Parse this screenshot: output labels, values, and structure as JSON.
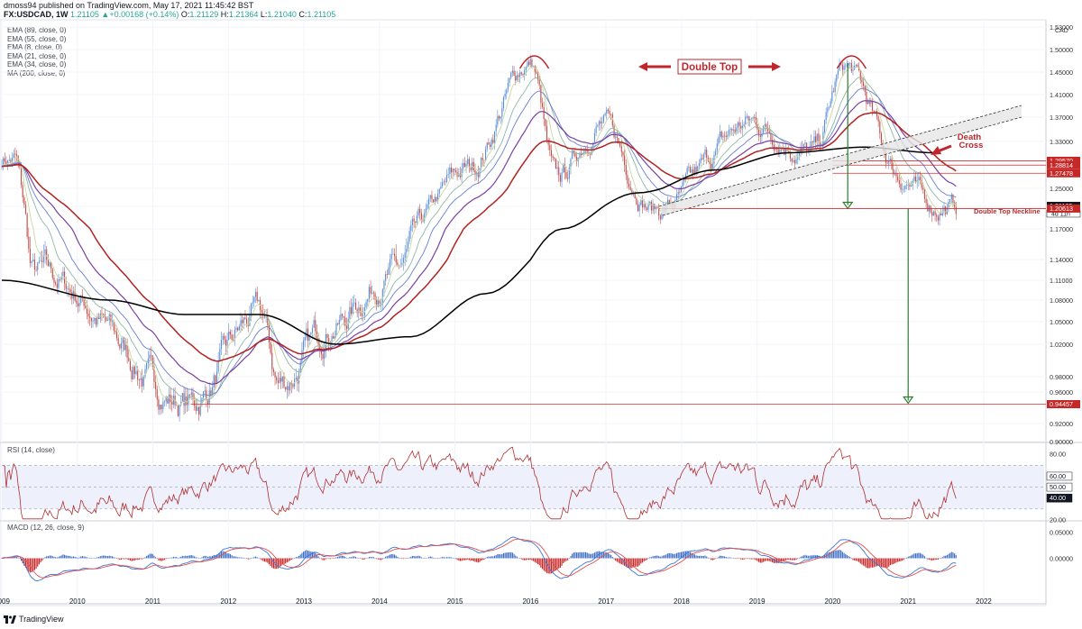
{
  "header": {
    "publish_line": "dmoss94 published on TradingView.com, May 17, 2021 11:45:42 BST",
    "symbol": "FX:USDCAD, 1W",
    "change_arrow": "▲",
    "change": "+0.00168 (+0.14%)",
    "ohlc": [
      {
        "label": "O:",
        "value": "1.21129"
      },
      {
        "label": "H:",
        "value": "1.21364"
      },
      {
        "label": "L:",
        "value": "1.21040"
      },
      {
        "label": "C:",
        "value": "1.21105"
      }
    ],
    "first_value": "1.21105"
  },
  "legend": [
    "EMA (89, close, 0)",
    "EMA (55, close, 0)",
    "EMA (8, close, 0)",
    "EMA (21, close, 0)",
    "EMA (34, close, 0)",
    "MA (200, close, 0)"
  ],
  "annotations": {
    "double_top": "Double Top",
    "death_cross_1": "Death",
    "death_cross_2": "Cross",
    "neckline": "Double Top Neckline"
  },
  "footer": {
    "brand": "TradingView"
  },
  "colors": {
    "up": "#26a69a",
    "down": "#ef5350",
    "candle_up": "#5b8fd6",
    "candle_down": "#c0504d",
    "ma200": "#000000",
    "ema89": "#b22222",
    "ema55": "#7b3fa0",
    "ema34": "#6a7fd0",
    "ema21": "#8fb8a6",
    "ema8": "#c9d8a0",
    "rsi": "#b03030",
    "macd": "#3c78d8",
    "signal": "#e05050",
    "annotation": "#c0272d",
    "target_arrow": "#2e7d32"
  },
  "chart_data": [
    {
      "type": "candlestick",
      "title": "FX:USDCAD, 1W",
      "ylabel": "CAD",
      "ylim": [
        0.9,
        1.53
      ],
      "x_ticks": [
        "2009",
        "2010",
        "2011",
        "2012",
        "2013",
        "2014",
        "2015",
        "2016",
        "2017",
        "2018",
        "2019",
        "2020",
        "2021",
        "2022"
      ],
      "y_ticks": [
        "1.53000",
        "1.50000",
        "1.45000",
        "1.41000",
        "1.37000",
        "1.33000",
        "1.29000",
        "1.25000",
        "1.21000",
        "1.17000",
        "1.14000",
        "1.11000",
        "1.08000",
        "1.05000",
        "1.02000",
        "0.98000",
        "0.96000",
        "0.92000",
        "0.90000"
      ],
      "price_markers": [
        {
          "label": "1.29570",
          "value": 1.2957
        },
        {
          "label": "1.28814",
          "value": 1.28814
        },
        {
          "label": "1.27478",
          "value": 1.27478
        },
        {
          "label": "1.21105",
          "value": 1.21105,
          "sub": "4d 11h"
        },
        {
          "label": "1.20613",
          "value": 1.20613
        },
        {
          "label": "0.94457",
          "value": 0.94457
        }
      ],
      "key_points": [
        {
          "x": "2009-03",
          "y": 1.3
        },
        {
          "x": "2009-06",
          "y": 1.12
        },
        {
          "x": "2011-07",
          "y": 0.945
        },
        {
          "x": "2012-06",
          "y": 1.06
        },
        {
          "x": "2012-09",
          "y": 0.97
        },
        {
          "x": "2013-06",
          "y": 1.05
        },
        {
          "x": "2014-03",
          "y": 1.12
        },
        {
          "x": "2015-03",
          "y": 1.28
        },
        {
          "x": "2016-01",
          "y": 1.47
        },
        {
          "x": "2016-05",
          "y": 1.26
        },
        {
          "x": "2016-12",
          "y": 1.36
        },
        {
          "x": "2017-09",
          "y": 1.206
        },
        {
          "x": "2018-12",
          "y": 1.36
        },
        {
          "x": "2019-10",
          "y": 1.31
        },
        {
          "x": "2020-03",
          "y": 1.46
        },
        {
          "x": "2020-12",
          "y": 1.27
        },
        {
          "x": "2021-05",
          "y": 1.211
        }
      ],
      "ma_200_points": [
        {
          "x": "2009-01",
          "y": 1.11
        },
        {
          "x": "2010-06",
          "y": 1.08
        },
        {
          "x": "2011-06",
          "y": 1.06
        },
        {
          "x": "2012-06",
          "y": 1.06
        },
        {
          "x": "2013-06",
          "y": 1.02
        },
        {
          "x": "2014-06",
          "y": 1.03
        },
        {
          "x": "2015-06",
          "y": 1.09
        },
        {
          "x": "2016-06",
          "y": 1.17
        },
        {
          "x": "2017-06",
          "y": 1.24
        },
        {
          "x": "2018-06",
          "y": 1.28
        },
        {
          "x": "2019-06",
          "y": 1.31
        },
        {
          "x": "2020-06",
          "y": 1.32
        },
        {
          "x": "2021-05",
          "y": 1.31
        }
      ]
    },
    {
      "type": "line",
      "title": "RSI (14, close)",
      "ylim": [
        20,
        90
      ],
      "y_ticks": [
        "80.00",
        "60.00",
        "50.00",
        "40.00",
        "20.00"
      ],
      "levels": [
        70,
        50,
        30
      ]
    },
    {
      "type": "histogram",
      "title": "MACD (12, 26, close, 9)",
      "ylim": [
        -0.07,
        0.07
      ],
      "y_ticks": [
        "0.05000",
        "0.00000"
      ]
    }
  ]
}
